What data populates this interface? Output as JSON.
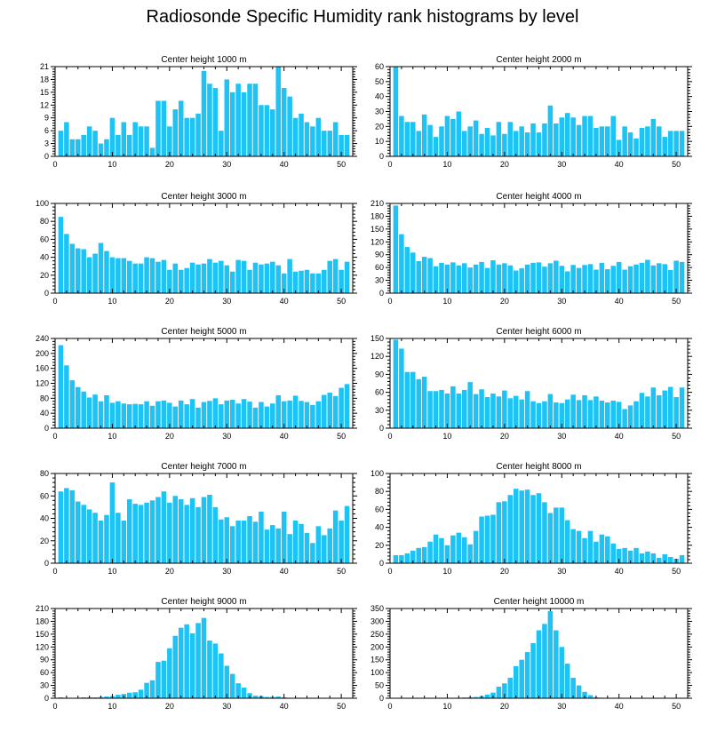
{
  "figure_title": "Radiosonde Specific Humidity rank histograms by level",
  "colors": {
    "bar": "#1ec3f5",
    "axis": "#000000",
    "background": "#ffffff"
  },
  "chart_data": [
    {
      "type": "bar",
      "title": "Center height 1000 m",
      "x": [
        1,
        2,
        3,
        4,
        5,
        6,
        7,
        8,
        9,
        10,
        11,
        12,
        13,
        14,
        15,
        16,
        17,
        18,
        19,
        20,
        21,
        22,
        23,
        24,
        25,
        26,
        27,
        28,
        29,
        30,
        31,
        32,
        33,
        34,
        35,
        36,
        37,
        38,
        39,
        40,
        41,
        42,
        43,
        44,
        45,
        46,
        47,
        48,
        49,
        50,
        51
      ],
      "values": [
        6,
        8,
        4,
        4,
        5,
        7,
        6,
        3,
        4,
        9,
        5,
        8,
        5,
        8,
        7,
        7,
        2,
        13,
        13,
        7,
        11,
        13,
        9,
        9,
        10,
        20,
        17,
        16,
        6,
        18,
        15,
        17,
        15,
        17,
        17,
        12,
        12,
        11,
        21,
        16,
        14,
        9,
        10,
        8,
        7,
        9,
        6,
        6,
        8,
        5,
        5
      ],
      "xlim": [
        0,
        52
      ],
      "ylim": [
        0,
        21
      ],
      "xticks": [
        0,
        10,
        20,
        30,
        40,
        50
      ],
      "yticks": [
        0,
        3,
        6,
        9,
        12,
        15,
        18,
        21
      ]
    },
    {
      "type": "bar",
      "title": "Center height 2000 m",
      "x": [
        1,
        2,
        3,
        4,
        5,
        6,
        7,
        8,
        9,
        10,
        11,
        12,
        13,
        14,
        15,
        16,
        17,
        18,
        19,
        20,
        21,
        22,
        23,
        24,
        25,
        26,
        27,
        28,
        29,
        30,
        31,
        32,
        33,
        34,
        35,
        36,
        37,
        38,
        39,
        40,
        41,
        42,
        43,
        44,
        45,
        46,
        47,
        48,
        49,
        50,
        51
      ],
      "values": [
        60,
        27,
        23,
        23,
        17,
        28,
        21,
        13,
        20,
        27,
        25,
        30,
        17,
        20,
        24,
        15,
        19,
        14,
        23,
        15,
        23,
        17,
        20,
        16,
        22,
        16,
        22,
        34,
        22,
        26,
        29,
        26,
        21,
        27,
        27,
        19,
        20,
        20,
        27,
        11,
        20,
        16,
        12,
        19,
        20,
        25,
        20,
        13,
        17,
        17,
        17
      ],
      "xlim": [
        0,
        52
      ],
      "ylim": [
        0,
        60
      ],
      "xticks": [
        0,
        10,
        20,
        30,
        40,
        50
      ],
      "yticks": [
        0,
        10,
        20,
        30,
        40,
        50,
        60
      ]
    },
    {
      "type": "bar",
      "title": "Center height 3000 m",
      "x": [
        1,
        2,
        3,
        4,
        5,
        6,
        7,
        8,
        9,
        10,
        11,
        12,
        13,
        14,
        15,
        16,
        17,
        18,
        19,
        20,
        21,
        22,
        23,
        24,
        25,
        26,
        27,
        28,
        29,
        30,
        31,
        32,
        33,
        34,
        35,
        36,
        37,
        38,
        39,
        40,
        41,
        42,
        43,
        44,
        45,
        46,
        47,
        48,
        49,
        50,
        51
      ],
      "values": [
        85,
        66,
        55,
        50,
        49,
        40,
        44,
        56,
        47,
        40,
        39,
        39,
        36,
        33,
        33,
        40,
        39,
        35,
        37,
        26,
        33,
        26,
        28,
        34,
        32,
        33,
        38,
        34,
        36,
        31,
        24,
        37,
        36,
        26,
        34,
        32,
        33,
        35,
        31,
        22,
        38,
        24,
        25,
        26,
        22,
        22,
        26,
        36,
        38,
        26,
        35
      ],
      "xlim": [
        0,
        52
      ],
      "ylim": [
        0,
        100
      ],
      "xticks": [
        0,
        10,
        20,
        30,
        40,
        50
      ],
      "yticks": [
        0,
        20,
        40,
        60,
        80,
        100
      ]
    },
    {
      "type": "bar",
      "title": "Center height 4000 m",
      "x": [
        1,
        2,
        3,
        4,
        5,
        6,
        7,
        8,
        9,
        10,
        11,
        12,
        13,
        14,
        15,
        16,
        17,
        18,
        19,
        20,
        21,
        22,
        23,
        24,
        25,
        26,
        27,
        28,
        29,
        30,
        31,
        32,
        33,
        34,
        35,
        36,
        37,
        38,
        39,
        40,
        41,
        42,
        43,
        44,
        45,
        46,
        47,
        48,
        49,
        50,
        51
      ],
      "values": [
        205,
        138,
        108,
        95,
        75,
        85,
        82,
        63,
        71,
        67,
        72,
        65,
        70,
        60,
        67,
        73,
        59,
        77,
        67,
        70,
        65,
        53,
        58,
        67,
        71,
        72,
        62,
        70,
        76,
        64,
        51,
        66,
        59,
        66,
        68,
        55,
        71,
        56,
        64,
        73,
        55,
        63,
        67,
        71,
        78,
        65,
        70,
        68,
        54,
        76,
        73
      ],
      "xlim": [
        0,
        52
      ],
      "ylim": [
        0,
        210
      ],
      "xticks": [
        0,
        10,
        20,
        30,
        40,
        50
      ],
      "yticks": [
        0,
        30,
        60,
        90,
        120,
        150,
        180,
        210
      ]
    },
    {
      "type": "bar",
      "title": "Center height 5000 m",
      "x": [
        1,
        2,
        3,
        4,
        5,
        6,
        7,
        8,
        9,
        10,
        11,
        12,
        13,
        14,
        15,
        16,
        17,
        18,
        19,
        20,
        21,
        22,
        23,
        24,
        25,
        26,
        27,
        28,
        29,
        30,
        31,
        32,
        33,
        34,
        35,
        36,
        37,
        38,
        39,
        40,
        41,
        42,
        43,
        44,
        45,
        46,
        47,
        48,
        49,
        50,
        51
      ],
      "values": [
        222,
        168,
        128,
        110,
        98,
        82,
        90,
        72,
        88,
        68,
        72,
        66,
        64,
        65,
        64,
        72,
        60,
        72,
        74,
        68,
        58,
        74,
        64,
        78,
        55,
        70,
        73,
        80,
        64,
        74,
        76,
        66,
        78,
        71,
        55,
        70,
        58,
        66,
        88,
        72,
        74,
        87,
        73,
        70,
        62,
        72,
        89,
        95,
        86,
        108,
        118
      ],
      "xlim": [
        0,
        52
      ],
      "ylim": [
        0,
        240
      ],
      "xticks": [
        0,
        10,
        20,
        30,
        40,
        50
      ],
      "yticks": [
        0,
        40,
        80,
        120,
        160,
        200,
        240
      ]
    },
    {
      "type": "bar",
      "title": "Center height 6000 m",
      "x": [
        1,
        2,
        3,
        4,
        5,
        6,
        7,
        8,
        9,
        10,
        11,
        12,
        13,
        14,
        15,
        16,
        17,
        18,
        19,
        20,
        21,
        22,
        23,
        24,
        25,
        26,
        27,
        28,
        29,
        30,
        31,
        32,
        33,
        34,
        35,
        36,
        37,
        38,
        39,
        40,
        41,
        42,
        43,
        44,
        45,
        46,
        47,
        48,
        49,
        50,
        51
      ],
      "values": [
        148,
        133,
        94,
        94,
        82,
        86,
        62,
        62,
        64,
        58,
        70,
        58,
        64,
        77,
        57,
        65,
        52,
        58,
        53,
        63,
        50,
        54,
        48,
        62,
        45,
        42,
        45,
        57,
        43,
        42,
        48,
        56,
        47,
        55,
        47,
        53,
        46,
        43,
        46,
        44,
        32,
        38,
        45,
        59,
        53,
        68,
        55,
        63,
        69,
        52,
        68
      ],
      "xlim": [
        0,
        52
      ],
      "ylim": [
        0,
        150
      ],
      "xticks": [
        0,
        10,
        20,
        30,
        40,
        50
      ],
      "yticks": [
        0,
        30,
        60,
        90,
        120,
        150
      ]
    },
    {
      "type": "bar",
      "title": "Center height 7000 m",
      "x": [
        1,
        2,
        3,
        4,
        5,
        6,
        7,
        8,
        9,
        10,
        11,
        12,
        13,
        14,
        15,
        16,
        17,
        18,
        19,
        20,
        21,
        22,
        23,
        24,
        25,
        26,
        27,
        28,
        29,
        30,
        31,
        32,
        33,
        34,
        35,
        36,
        37,
        38,
        39,
        40,
        41,
        42,
        43,
        44,
        45,
        46,
        47,
        48,
        49,
        50,
        51
      ],
      "values": [
        64,
        67,
        65,
        55,
        52,
        48,
        45,
        38,
        43,
        72,
        45,
        38,
        57,
        53,
        52,
        54,
        56,
        59,
        64,
        54,
        60,
        57,
        52,
        58,
        50,
        59,
        61,
        50,
        39,
        41,
        33,
        38,
        38,
        42,
        37,
        46,
        30,
        34,
        31,
        46,
        26,
        38,
        35,
        27,
        18,
        33,
        25,
        31,
        47,
        38,
        51
      ],
      "xlim": [
        0,
        52
      ],
      "ylim": [
        0,
        80
      ],
      "xticks": [
        0,
        10,
        20,
        30,
        40,
        50
      ],
      "yticks": [
        0,
        20,
        40,
        60,
        80
      ]
    },
    {
      "type": "bar",
      "title": "Center height 8000 m",
      "x": [
        1,
        2,
        3,
        4,
        5,
        6,
        7,
        8,
        9,
        10,
        11,
        12,
        13,
        14,
        15,
        16,
        17,
        18,
        19,
        20,
        21,
        22,
        23,
        24,
        25,
        26,
        27,
        28,
        29,
        30,
        31,
        32,
        33,
        34,
        35,
        36,
        37,
        38,
        39,
        40,
        41,
        42,
        43,
        44,
        45,
        46,
        47,
        48,
        49,
        50,
        51
      ],
      "values": [
        9,
        9,
        11,
        14,
        17,
        18,
        24,
        32,
        28,
        20,
        31,
        34,
        29,
        21,
        36,
        52,
        53,
        54,
        68,
        69,
        76,
        83,
        81,
        82,
        76,
        78,
        68,
        56,
        62,
        62,
        48,
        38,
        36,
        28,
        36,
        24,
        32,
        30,
        22,
        16,
        17,
        14,
        17,
        11,
        13,
        11,
        6,
        10,
        7,
        5,
        9
      ],
      "xlim": [
        0,
        52
      ],
      "ylim": [
        0,
        100
      ],
      "xticks": [
        0,
        10,
        20,
        30,
        40,
        50
      ],
      "yticks": [
        0,
        20,
        40,
        60,
        80,
        100
      ]
    },
    {
      "type": "bar",
      "title": "Center height 9000 m",
      "x": [
        1,
        2,
        3,
        4,
        5,
        6,
        7,
        8,
        9,
        10,
        11,
        12,
        13,
        14,
        15,
        16,
        17,
        18,
        19,
        20,
        21,
        22,
        23,
        24,
        25,
        26,
        27,
        28,
        29,
        30,
        31,
        32,
        33,
        34,
        35,
        36,
        37,
        38,
        39,
        40,
        41,
        42,
        43,
        44,
        45,
        46,
        47,
        48,
        49,
        50,
        51
      ],
      "values": [
        2,
        1,
        1,
        1,
        2,
        2,
        2,
        3,
        4,
        5,
        8,
        10,
        13,
        14,
        20,
        36,
        42,
        85,
        88,
        117,
        146,
        165,
        173,
        152,
        176,
        188,
        135,
        128,
        105,
        76,
        57,
        35,
        25,
        12,
        6,
        5,
        3,
        3,
        4,
        2,
        1,
        1,
        0,
        0,
        0,
        0,
        0,
        0,
        0,
        0,
        0
      ],
      "xlim": [
        0,
        52
      ],
      "ylim": [
        0,
        210
      ],
      "xticks": [
        0,
        10,
        20,
        30,
        40,
        50
      ],
      "yticks": [
        0,
        30,
        60,
        90,
        120,
        150,
        180,
        210
      ]
    },
    {
      "type": "bar",
      "title": "Center height 10000 m",
      "x": [
        1,
        2,
        3,
        4,
        5,
        6,
        7,
        8,
        9,
        10,
        11,
        12,
        13,
        14,
        15,
        16,
        17,
        18,
        19,
        20,
        21,
        22,
        23,
        24,
        25,
        26,
        27,
        28,
        29,
        30,
        31,
        32,
        33,
        34,
        35,
        36,
        37,
        38,
        39,
        40,
        41,
        42,
        43,
        44,
        45,
        46,
        47,
        48,
        49,
        50,
        51
      ],
      "values": [
        0,
        0,
        0,
        0,
        0,
        0,
        0,
        0,
        0,
        1,
        1,
        2,
        3,
        4,
        5,
        8,
        14,
        22,
        45,
        58,
        80,
        125,
        150,
        180,
        215,
        265,
        290,
        340,
        265,
        200,
        135,
        80,
        50,
        25,
        12,
        4,
        2,
        1,
        1,
        0,
        0,
        0,
        0,
        0,
        0,
        0,
        0,
        0,
        0,
        0,
        0
      ],
      "xlim": [
        0,
        52
      ],
      "ylim": [
        0,
        350
      ],
      "xticks": [
        0,
        10,
        20,
        30,
        40,
        50
      ],
      "yticks": [
        0,
        50,
        100,
        150,
        200,
        250,
        300,
        350
      ]
    }
  ]
}
